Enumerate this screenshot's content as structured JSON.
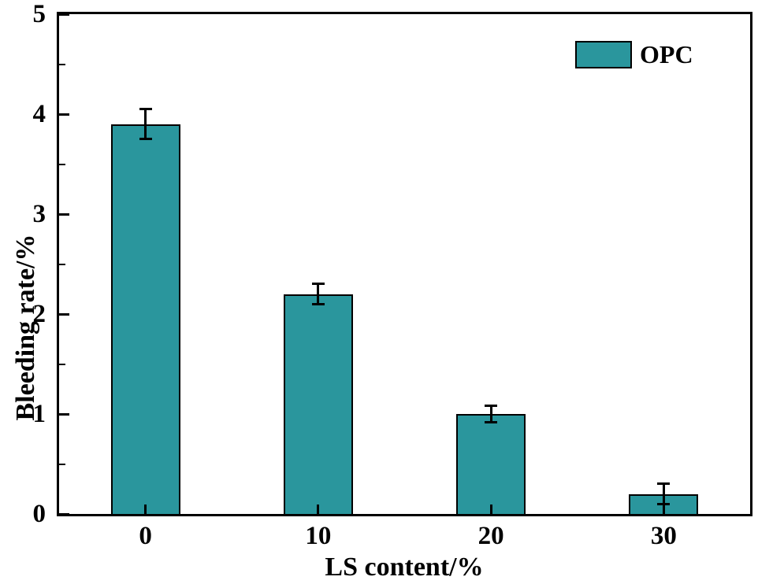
{
  "chart_data": {
    "type": "bar",
    "title": "",
    "xlabel": "LS content/%",
    "ylabel": "Bleeding rate/%",
    "categories": [
      "0",
      "10",
      "20",
      "30"
    ],
    "series": [
      {
        "name": "OPC",
        "values": [
          3.9,
          2.2,
          1.0,
          0.2
        ],
        "errors": [
          0.15,
          0.1,
          0.08,
          0.1
        ]
      }
    ],
    "ylim": [
      0,
      5
    ],
    "yticks": [
      "0",
      "1",
      "2",
      "3",
      "4",
      "5"
    ],
    "ytick_values": [
      0,
      1,
      2,
      3,
      4,
      5
    ],
    "y_minor_step": 0.5,
    "grid": false,
    "legend_position": "top-right",
    "colors": {
      "bar_fill": "#2A969D",
      "bar_edge": "#000000",
      "axis": "#000000",
      "text": "#000000",
      "background": "#ffffff"
    }
  }
}
